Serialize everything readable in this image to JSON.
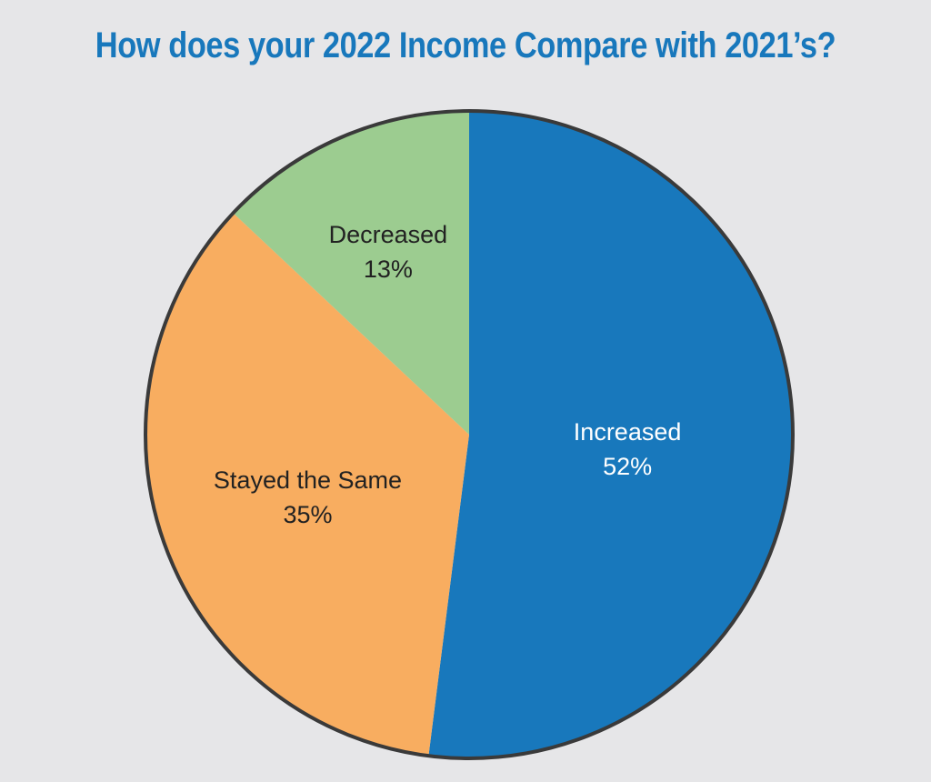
{
  "chart_data": {
    "type": "pie",
    "title": "How does your 2022 Income Compare with 2021’s?",
    "slices": [
      {
        "label": "Increased",
        "value": 52,
        "value_label": "52%",
        "color": "#1878bc",
        "text_color": "#ffffff"
      },
      {
        "label": "Stayed the Same",
        "value": 35,
        "value_label": "35%",
        "color": "#f8ad60",
        "text_color": "#222222"
      },
      {
        "label": "Decreased",
        "value": 13,
        "value_label": "13%",
        "color": "#9ccc90",
        "text_color": "#222222"
      }
    ],
    "start_angle": "12 o'clock",
    "direction": "clockwise",
    "legend": "none",
    "labels": "inside slices"
  },
  "colors": {
    "background": "#e6e6e8",
    "title": "#1878bc",
    "outline": "#3a3a3a"
  }
}
